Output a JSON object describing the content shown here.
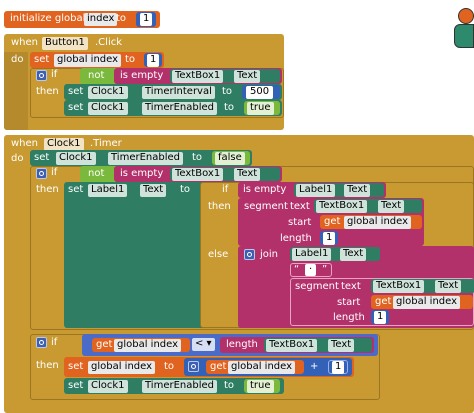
{
  "colors": {
    "variable": "#e0631f",
    "control": "#c89a31",
    "component": "#2f7d63",
    "text": "#b3316b",
    "logic": "#7ab93b",
    "math": "#3261b7"
  },
  "init": {
    "label": "initialize global",
    "name": "index",
    "to": "to",
    "value": "1"
  },
  "button_event": {
    "when": "when",
    "component": "Button1",
    "event": ".Click",
    "do": "do",
    "set_var": {
      "set": "set",
      "name": "global index",
      "to": "to",
      "value": "1"
    },
    "if_block": {
      "if": "if",
      "not": "not",
      "is_empty": "is empty",
      "textbox": "TextBox1",
      "prop": "Text",
      "then": "then",
      "set_interval": {
        "set": "set",
        "comp": "Clock1",
        "prop": "TimerInterval",
        "to": "to",
        "value": "500"
      },
      "set_enabled": {
        "set": "set",
        "comp": "Clock1",
        "prop": "TimerEnabled",
        "to": "to",
        "value": "true"
      }
    }
  },
  "timer_event": {
    "when": "when",
    "component": "Clock1",
    "event": ".Timer",
    "do": "do",
    "set_disable": {
      "set": "set",
      "comp": "Clock1",
      "prop": "TimerEnabled",
      "to": "to",
      "value": "false"
    },
    "if1": {
      "if": "if",
      "not": "not",
      "is_empty": "is empty",
      "textbox": "TextBox1",
      "prop": "Text",
      "then": "then",
      "set_label": {
        "set": "set",
        "comp": "Label1",
        "prop": "Text",
        "to": "to"
      },
      "inner_if": {
        "if": "if",
        "is_empty": "is empty",
        "comp": "Label1",
        "prop": "Text",
        "then": "then",
        "segment": "segment",
        "text": "text",
        "tb": "TextBox1",
        "tbprop": "Text",
        "start": "start",
        "get": "get",
        "var": "global index",
        "length": "length",
        "len_val": "1",
        "else": "else",
        "join": "join",
        "join_comp": "Label1",
        "join_prop": "Text",
        "quote_open": "“",
        "space_sym": "·",
        "quote_close": "”",
        "segment2": "segment",
        "text2": "text",
        "tb2": "TextBox1",
        "tb2prop": "Text",
        "start2": "start",
        "get2": "get",
        "var2": "global index",
        "length2": "length",
        "len_val2": "1"
      }
    },
    "if2": {
      "if": "if",
      "get": "get",
      "var": "global index",
      "op": "< ▾",
      "length": "length",
      "tb": "TextBox1",
      "tbprop": "Text",
      "then": "then",
      "set_index": {
        "set": "set",
        "name": "global index",
        "to": "to",
        "get": "get",
        "var": "global index",
        "plus": "+",
        "value": "1"
      },
      "set_enable": {
        "set": "set",
        "comp": "Clock1",
        "prop": "TimerEnabled",
        "to": "to",
        "value": "true"
      }
    }
  }
}
